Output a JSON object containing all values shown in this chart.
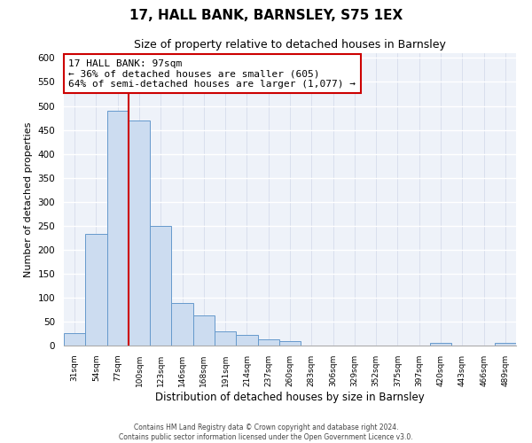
{
  "title": "17, HALL BANK, BARNSLEY, S75 1EX",
  "subtitle": "Size of property relative to detached houses in Barnsley",
  "xlabel": "Distribution of detached houses by size in Barnsley",
  "ylabel": "Number of detached properties",
  "bin_labels": [
    "31sqm",
    "54sqm",
    "77sqm",
    "100sqm",
    "123sqm",
    "146sqm",
    "168sqm",
    "191sqm",
    "214sqm",
    "237sqm",
    "260sqm",
    "283sqm",
    "306sqm",
    "329sqm",
    "352sqm",
    "375sqm",
    "397sqm",
    "420sqm",
    "443sqm",
    "466sqm",
    "489sqm"
  ],
  "bar_heights": [
    25,
    233,
    490,
    470,
    250,
    88,
    63,
    30,
    22,
    13,
    10,
    0,
    0,
    0,
    0,
    0,
    0,
    5,
    0,
    0,
    5
  ],
  "bar_color": "#ccdcf0",
  "bar_edge_color": "#6699cc",
  "property_line_color": "#cc0000",
  "annotation_title": "17 HALL BANK: 97sqm",
  "annotation_line1": "← 36% of detached houses are smaller (605)",
  "annotation_line2": "64% of semi-detached houses are larger (1,077) →",
  "annotation_box_edge_color": "#cc0000",
  "ylim": [
    0,
    610
  ],
  "yticks": [
    0,
    50,
    100,
    150,
    200,
    250,
    300,
    350,
    400,
    450,
    500,
    550,
    600
  ],
  "footer_line1": "Contains HM Land Registry data © Crown copyright and database right 2024.",
  "footer_line2": "Contains public sector information licensed under the Open Government Licence v3.0.",
  "background_color": "#eef2f9",
  "grid_color": "#d0d8e8"
}
